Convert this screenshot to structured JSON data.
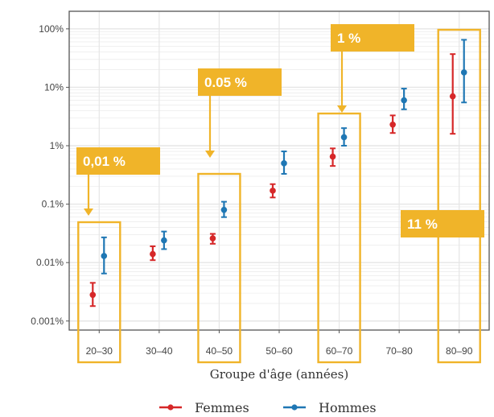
{
  "chart_data": {
    "type": "scatter",
    "xlabel": "Groupe d'âge (années)",
    "ylabel": "",
    "yscale": "log",
    "ylim": [
      0.0007,
      200
    ],
    "grid": true,
    "legend_position": "bottom",
    "categories": [
      "20–30",
      "30–40",
      "40–50",
      "50–60",
      "60–70",
      "70–80",
      "80–90"
    ],
    "y_ticks": [
      0.001,
      0.01,
      0.1,
      1,
      10,
      100
    ],
    "y_tick_labels": [
      "0.001%",
      "0.01%",
      "0.1%",
      "1%",
      "10%",
      "100%"
    ],
    "series": [
      {
        "name": "Femmes",
        "color": "#d62728",
        "values": [
          0.0028,
          0.014,
          0.026,
          0.17,
          0.65,
          2.3,
          7.0
        ],
        "lower": [
          0.0018,
          0.011,
          0.021,
          0.13,
          0.45,
          1.65,
          1.6
        ],
        "upper": [
          0.0045,
          0.019,
          0.031,
          0.22,
          0.9,
          3.3,
          37
        ]
      },
      {
        "name": "Hommes",
        "color": "#1f77b4",
        "values": [
          0.013,
          0.024,
          0.08,
          0.5,
          1.4,
          6.0,
          18.0
        ],
        "lower": [
          0.0065,
          0.017,
          0.06,
          0.33,
          1.0,
          4.2,
          5.5
        ],
        "upper": [
          0.027,
          0.034,
          0.11,
          0.8,
          2.0,
          9.5,
          65
        ]
      }
    ],
    "annotations": [
      {
        "text": "0,01 %",
        "category": "20–30"
      },
      {
        "text": "0.05 %",
        "category": "40–50"
      },
      {
        "text": "1 %",
        "category": "60–70"
      },
      {
        "text": "11 %",
        "category": "80–90"
      }
    ],
    "colors": {
      "highlight": "#f0b429",
      "grid": "#e6e6e6",
      "panel_border": "#555555"
    }
  }
}
